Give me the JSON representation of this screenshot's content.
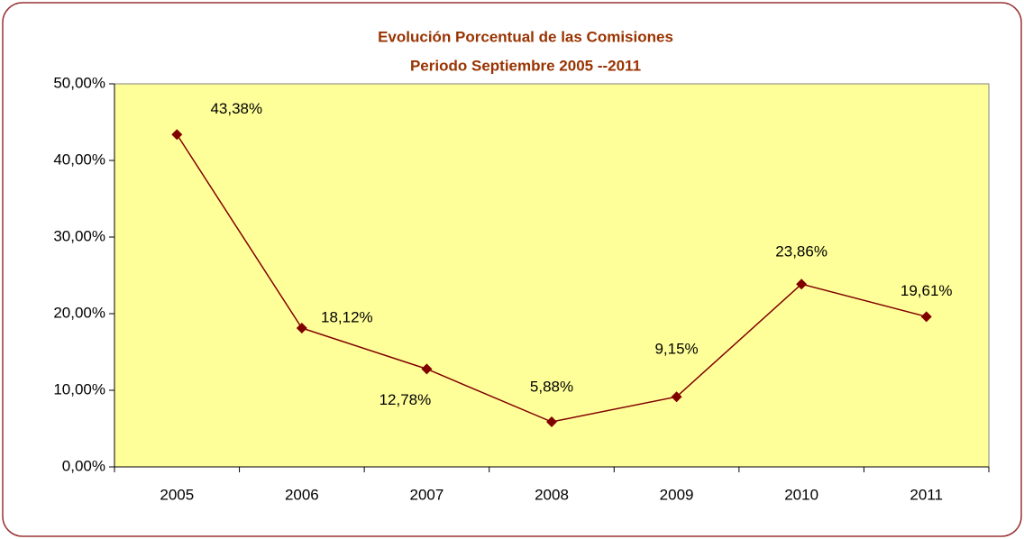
{
  "chart_data": {
    "type": "line",
    "title": "Evolución Porcentual de las Comisiones",
    "subtitle": "Periodo Septiembre 2005 --2011",
    "categories": [
      "2005",
      "2006",
      "2007",
      "2008",
      "2009",
      "2010",
      "2011"
    ],
    "series": [
      {
        "color": "#800000",
        "values": [
          43.38,
          18.12,
          12.78,
          5.88,
          9.15,
          23.86,
          19.61
        ],
        "value_labels": [
          "43,38%",
          "18,12%",
          "12,78%",
          "5,88%",
          "9,15%",
          "23,86%",
          "19,61%"
        ]
      }
    ],
    "ylim": [
      0,
      50
    ],
    "yticks": [
      {
        "value": 0,
        "label": "0,00%"
      },
      {
        "value": 10,
        "label": "10,00%"
      },
      {
        "value": 20,
        "label": "20,00%"
      },
      {
        "value": 30,
        "label": "30,00%"
      },
      {
        "value": 40,
        "label": "40,00%"
      },
      {
        "value": 50,
        "label": "50,00%"
      }
    ],
    "plot_background": "#ffff99"
  }
}
